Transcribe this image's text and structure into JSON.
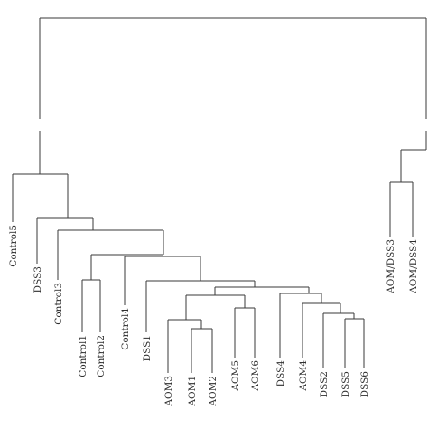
{
  "dendrogram": {
    "leaves": [
      "Control5",
      "DSS3",
      "Control3",
      "Control1",
      "Control2",
      "Control4",
      "DSS1",
      "AOM3",
      "AOM1",
      "AOM2",
      "AOM5",
      "AOM6",
      "DSS4",
      "AOM4",
      "DSS2",
      "DSS5",
      "DSS6",
      "AOM/DSS3",
      "AOM/DSS4"
    ]
  }
}
